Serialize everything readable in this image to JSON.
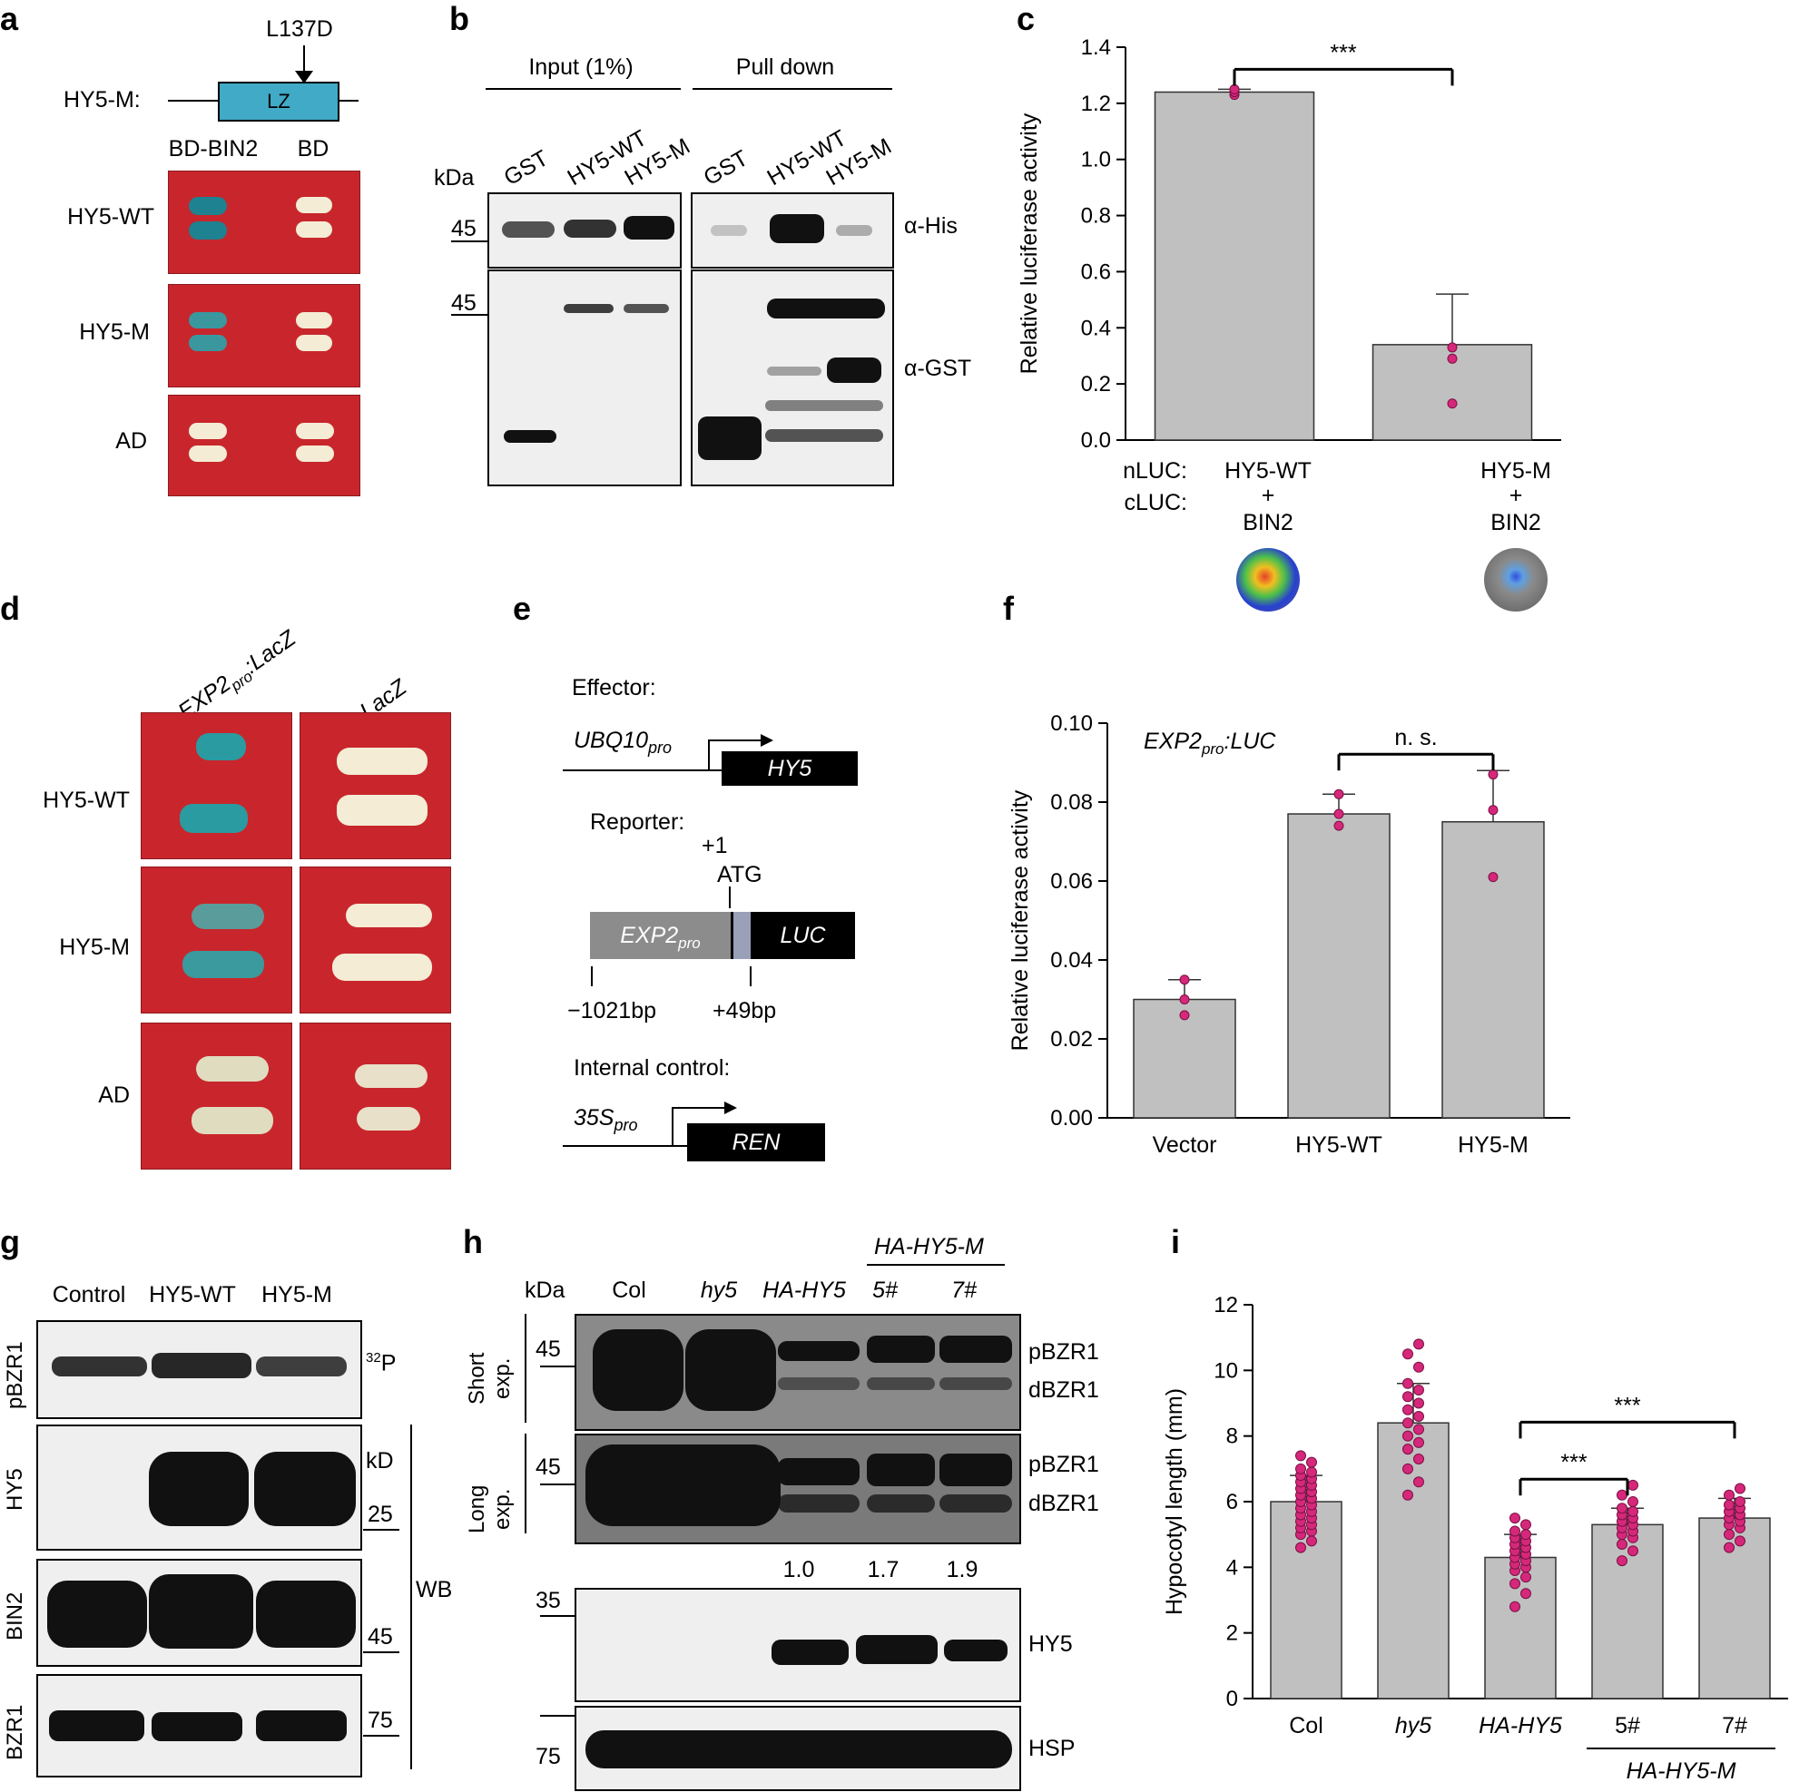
{
  "panels": {
    "a": {
      "letter": "a",
      "mutation": "L137D",
      "construct": "HY5-M:",
      "domain": "LZ",
      "col_labels": [
        "BD-BIN2",
        "BD"
      ],
      "row_labels": [
        "HY5-WT",
        "HY5-M",
        "AD"
      ]
    },
    "b": {
      "letter": "b",
      "groups": [
        "Input (1%)",
        "Pull down"
      ],
      "kda": "kDa",
      "lanes": [
        "GST",
        "HY5-WT",
        "HY5-M",
        "GST",
        "HY5-WT",
        "HY5-M"
      ],
      "markers": [
        "45",
        "45"
      ],
      "antibodies": [
        "α-His",
        "α-GST"
      ]
    },
    "c": {
      "letter": "c"
    },
    "d": {
      "letter": "d",
      "col_labels": [
        "EXP2",
        "pro",
        ":LacZ",
        "LacZ"
      ],
      "row_labels": [
        "HY5-WT",
        "HY5-M",
        "AD"
      ]
    },
    "e": {
      "letter": "e",
      "effector": "Effector:",
      "ubq": "UBQ10",
      "ubq_sub": "pro",
      "hy5": "HY5",
      "reporter": "Reporter:",
      "plus1": "+1",
      "atg": "ATG",
      "exp2": "EXP2",
      "exp2_sub": "pro",
      "luc": "LUC",
      "left_pos": "−1021bp",
      "right_pos": "+49bp",
      "internal": "Internal control:",
      "s35": "35S",
      "s35_sub": "pro",
      "ren": "REN"
    },
    "f": {
      "letter": "f"
    },
    "g": {
      "letter": "g",
      "lanes": [
        "Control",
        "HY5-WT",
        "HY5-M"
      ],
      "row_labels": [
        "pBZR1",
        "HY5",
        "BIN2",
        "BZR1"
      ],
      "p32": "32",
      "p32_elem": "P",
      "kd": "kD",
      "markers": [
        "25",
        "45",
        "75"
      ],
      "wb": "WB"
    },
    "h": {
      "letter": "h",
      "kda": "kDa",
      "group_label": "HA-HY5-M",
      "lanes": [
        "Col",
        "hy5",
        "HA-HY5",
        "5#",
        "7#"
      ],
      "exposures": [
        "Short",
        "exp.",
        "Long",
        "exp."
      ],
      "markers": [
        "45",
        "45",
        "35",
        "75"
      ],
      "bands": [
        "pBZR1",
        "dBZR1",
        "pBZR1",
        "dBZR1",
        "HY5",
        "HSP"
      ],
      "ratios": [
        "1.0",
        "1.7",
        "1.9"
      ]
    },
    "i": {
      "letter": "i"
    }
  },
  "chart_data": [
    {
      "id": "c",
      "type": "bar",
      "ylabel": "Relative luciferase activity",
      "ylim": [
        0,
        1.4
      ],
      "yticks": [
        0.0,
        0.2,
        0.4,
        0.6,
        0.8,
        1.0,
        1.2,
        1.4
      ],
      "row_headers": [
        "nLUC:",
        "cLUC:"
      ],
      "categories": [
        "HY5-WT",
        "HY5-M"
      ],
      "category_lines": [
        [
          "HY5-WT",
          "+",
          "BIN2"
        ],
        [
          "HY5-M",
          "+",
          "BIN2"
        ]
      ],
      "values": [
        1.24,
        0.34
      ],
      "errors": [
        0.01,
        0.18
      ],
      "points": [
        [
          1.23,
          1.24,
          1.25
        ],
        [
          0.13,
          0.29,
          0.33
        ]
      ],
      "significance": [
        {
          "from": 0,
          "to": 1,
          "label": "***"
        }
      ],
      "colors": {
        "bar": "#c0c0c0",
        "point": "#d6287a"
      }
    },
    {
      "id": "f",
      "type": "bar",
      "ylabel": "Relative luciferase activity",
      "annotation_main": "EXP2",
      "annotation_sub": "pro",
      "annotation_tail": ":LUC",
      "ylim": [
        0,
        0.1
      ],
      "yticks": [
        0.0,
        0.02,
        0.04,
        0.06,
        0.08,
        0.1
      ],
      "categories": [
        "Vector",
        "HY5-WT",
        "HY5-M"
      ],
      "values": [
        0.03,
        0.077,
        0.075
      ],
      "errors": [
        0.005,
        0.005,
        0.013
      ],
      "points": [
        [
          0.026,
          0.03,
          0.035
        ],
        [
          0.074,
          0.077,
          0.082
        ],
        [
          0.061,
          0.078,
          0.087
        ]
      ],
      "significance": [
        {
          "from": 1,
          "to": 2,
          "label": "n. s."
        }
      ],
      "colors": {
        "bar": "#c0c0c0",
        "point": "#d6287a"
      }
    },
    {
      "id": "i",
      "type": "bar",
      "ylabel": "Hypocotyl length (mm)",
      "ylim": [
        0,
        12
      ],
      "yticks": [
        0,
        2,
        4,
        6,
        8,
        10,
        12
      ],
      "categories": [
        "Col",
        "hy5",
        "HA-HY5",
        "5#",
        "7#"
      ],
      "italic": [
        false,
        true,
        true,
        false,
        false
      ],
      "group_label": "HA-HY5-M",
      "values": [
        6.0,
        8.4,
        4.3,
        5.3,
        5.5
      ],
      "errors": [
        0.8,
        1.2,
        0.7,
        0.5,
        0.6
      ],
      "points": [
        [
          4.6,
          4.8,
          5.0,
          5.1,
          5.2,
          5.3,
          5.4,
          5.5,
          5.6,
          5.7,
          5.8,
          5.9,
          6.0,
          6.1,
          6.2,
          6.3,
          6.4,
          6.5,
          6.6,
          6.7,
          6.8,
          6.9,
          7.0,
          7.2,
          7.4
        ],
        [
          6.2,
          6.6,
          7.0,
          7.3,
          7.6,
          7.8,
          8.0,
          8.2,
          8.4,
          8.6,
          8.8,
          9.0,
          9.2,
          9.4,
          9.6,
          10.1,
          10.5,
          10.8
        ],
        [
          2.8,
          3.2,
          3.5,
          3.7,
          3.9,
          4.0,
          4.1,
          4.2,
          4.3,
          4.4,
          4.5,
          4.6,
          4.7,
          4.8,
          4.9,
          5.0,
          5.1,
          5.3,
          5.5
        ],
        [
          4.2,
          4.5,
          4.7,
          4.9,
          5.0,
          5.1,
          5.2,
          5.3,
          5.4,
          5.5,
          5.6,
          5.7,
          5.8,
          6.0,
          6.2,
          6.5
        ],
        [
          4.6,
          4.8,
          5.0,
          5.2,
          5.3,
          5.4,
          5.5,
          5.6,
          5.7,
          5.8,
          5.9,
          6.0,
          6.2,
          6.4
        ]
      ],
      "significance": [
        {
          "from": 2,
          "to": 3,
          "label": "***"
        },
        {
          "from": 2,
          "to": 4,
          "label": "***"
        }
      ],
      "colors": {
        "bar": "#c0c0c0",
        "point": "#d6287a"
      }
    }
  ]
}
